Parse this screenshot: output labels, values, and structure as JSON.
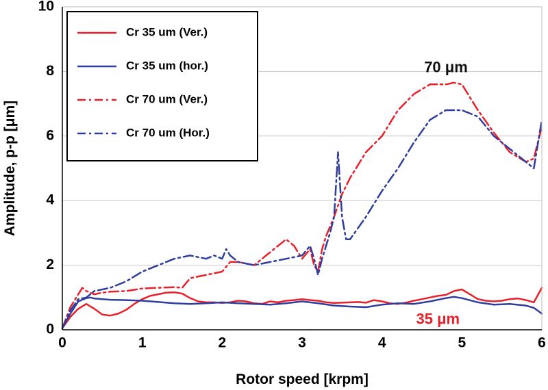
{
  "chart_data": {
    "type": "line",
    "xlabel": "Rotor speed [krpm]",
    "ylabel": "Amplitude, p-p [μm]",
    "xlim": [
      0,
      6
    ],
    "ylim": [
      0,
      10
    ],
    "xticks": [
      "0",
      "1",
      "2",
      "3",
      "4",
      "5",
      "6"
    ],
    "yticks": [
      "0",
      "2",
      "4",
      "6",
      "8",
      "10"
    ],
    "grid": "horizontal",
    "legend_position": "top-left",
    "series": [
      {
        "name": "Cr 35 um (Ver.)",
        "color": "#e8202a",
        "dash": "solid",
        "x": [
          0,
          0.1,
          0.2,
          0.3,
          0.4,
          0.5,
          0.6,
          0.7,
          0.8,
          0.9,
          1.0,
          1.1,
          1.2,
          1.3,
          1.4,
          1.5,
          1.6,
          1.7,
          1.8,
          1.9,
          2.0,
          2.1,
          2.2,
          2.3,
          2.4,
          2.5,
          2.6,
          2.7,
          2.8,
          2.9,
          3.0,
          3.1,
          3.2,
          3.3,
          3.4,
          3.5,
          3.6,
          3.7,
          3.8,
          3.9,
          4.0,
          4.1,
          4.2,
          4.3,
          4.4,
          4.5,
          4.6,
          4.7,
          4.8,
          4.9,
          5.0,
          5.1,
          5.2,
          5.3,
          5.4,
          5.5,
          5.6,
          5.7,
          5.8,
          5.9,
          6.0
        ],
        "y": [
          0.05,
          0.4,
          0.65,
          0.8,
          0.65,
          0.47,
          0.44,
          0.5,
          0.62,
          0.8,
          0.95,
          1.05,
          1.1,
          1.15,
          1.16,
          1.12,
          0.98,
          0.88,
          0.85,
          0.85,
          0.83,
          0.85,
          0.9,
          0.88,
          0.82,
          0.8,
          0.88,
          0.85,
          0.9,
          0.92,
          0.95,
          0.92,
          0.9,
          0.85,
          0.83,
          0.84,
          0.85,
          0.86,
          0.84,
          0.92,
          0.88,
          0.82,
          0.8,
          0.84,
          0.9,
          0.95,
          1.0,
          1.05,
          1.08,
          1.2,
          1.25,
          1.1,
          0.95,
          0.9,
          0.88,
          0.9,
          0.95,
          0.97,
          0.92,
          0.85,
          1.3
        ]
      },
      {
        "name": "Cr 35 um (hor.)",
        "color": "#2e3d9e",
        "dash": "solid",
        "x": [
          0,
          0.1,
          0.2,
          0.3,
          0.35,
          0.4,
          0.5,
          0.6,
          0.8,
          1.0,
          1.2,
          1.4,
          1.6,
          1.8,
          2.0,
          2.2,
          2.4,
          2.6,
          2.8,
          3.0,
          3.2,
          3.4,
          3.6,
          3.8,
          4.0,
          4.2,
          4.4,
          4.6,
          4.8,
          4.9,
          5.0,
          5.2,
          5.4,
          5.6,
          5.8,
          5.9,
          6.0
        ],
        "y": [
          0.05,
          0.5,
          0.88,
          0.98,
          1.0,
          0.97,
          0.95,
          0.93,
          0.92,
          0.9,
          0.86,
          0.82,
          0.8,
          0.82,
          0.85,
          0.82,
          0.8,
          0.78,
          0.82,
          0.88,
          0.82,
          0.75,
          0.72,
          0.7,
          0.78,
          0.82,
          0.8,
          0.88,
          0.98,
          1.02,
          0.98,
          0.85,
          0.78,
          0.8,
          0.75,
          0.68,
          0.5
        ]
      },
      {
        "name": "Cr 70 um (Ver.)",
        "color": "#e8202a",
        "dash": "dashdot",
        "x": [
          0,
          0.1,
          0.2,
          0.25,
          0.3,
          0.4,
          0.5,
          0.6,
          0.8,
          1.0,
          1.2,
          1.4,
          1.5,
          1.6,
          1.8,
          2.0,
          2.1,
          2.2,
          2.4,
          2.6,
          2.8,
          2.9,
          3.0,
          3.1,
          3.15,
          3.2,
          3.25,
          3.3,
          3.4,
          3.5,
          3.6,
          3.8,
          4.0,
          4.2,
          4.4,
          4.6,
          4.8,
          4.9,
          5.0,
          5.2,
          5.4,
          5.6,
          5.8,
          5.9,
          6.0
        ],
        "y": [
          0.05,
          0.7,
          1.1,
          1.3,
          1.2,
          1.1,
          1.15,
          1.18,
          1.2,
          1.28,
          1.3,
          1.32,
          1.3,
          1.6,
          1.7,
          1.8,
          2.1,
          2.1,
          2.0,
          2.4,
          2.8,
          2.6,
          2.2,
          2.5,
          2.0,
          1.8,
          2.5,
          2.9,
          3.5,
          4.2,
          4.7,
          5.5,
          6.0,
          6.8,
          7.3,
          7.6,
          7.6,
          7.65,
          7.6,
          6.8,
          6.1,
          5.5,
          5.2,
          5.3,
          6.3
        ]
      },
      {
        "name": "Cr 70 um (Hor.)",
        "color": "#2e3d9e",
        "dash": "dashdot",
        "x": [
          0,
          0.1,
          0.2,
          0.3,
          0.4,
          0.6,
          0.8,
          1.0,
          1.2,
          1.4,
          1.6,
          1.8,
          1.9,
          2.0,
          2.05,
          2.1,
          2.2,
          2.4,
          2.6,
          2.8,
          3.0,
          3.1,
          3.15,
          3.2,
          3.25,
          3.3,
          3.35,
          3.4,
          3.45,
          3.5,
          3.55,
          3.6,
          3.8,
          4.0,
          4.2,
          4.4,
          4.6,
          4.8,
          5.0,
          5.2,
          5.4,
          5.6,
          5.8,
          5.9,
          6.0
        ],
        "y": [
          0.05,
          0.6,
          0.95,
          1.0,
          1.2,
          1.3,
          1.5,
          1.8,
          2.0,
          2.2,
          2.3,
          2.2,
          2.3,
          2.2,
          2.5,
          2.3,
          2.1,
          2.0,
          2.1,
          2.2,
          2.3,
          2.6,
          2.2,
          1.7,
          2.2,
          2.6,
          3.0,
          3.5,
          5.5,
          3.5,
          2.8,
          2.8,
          3.5,
          4.3,
          5.0,
          5.8,
          6.5,
          6.8,
          6.8,
          6.6,
          6.0,
          5.6,
          5.2,
          5.0,
          6.5
        ]
      }
    ],
    "annotations": [
      {
        "text": "70 μm",
        "x": 4.8,
        "y": 8.1,
        "color": "#111111"
      },
      {
        "text": "35 μm",
        "x": 4.7,
        "y": 0.3,
        "color": "#e8202a"
      }
    ]
  }
}
